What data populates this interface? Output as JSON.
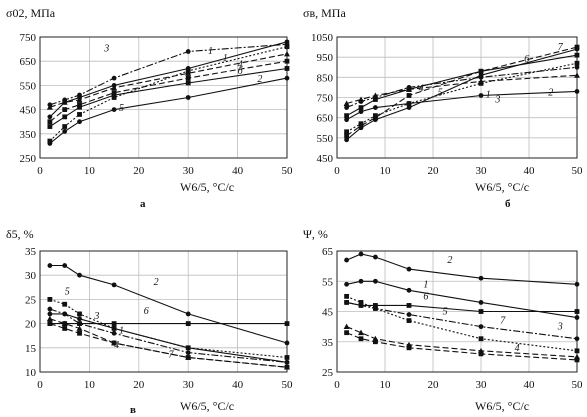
{
  "panels": [
    {
      "ylabel": "σ02, МПа",
      "xlabel": "W6/5, °C/c",
      "letter": "а",
      "xlim": [
        0,
        50
      ],
      "ylim": [
        250,
        750
      ],
      "xticks": [
        0,
        10,
        20,
        30,
        40,
        50
      ],
      "yticks": [
        250,
        350,
        450,
        550,
        650,
        750
      ],
      "tick_labels_x": [
        "0",
        "10",
        "20",
        "30",
        "40",
        "50"
      ],
      "tick_labels_y": [
        "250",
        "350",
        "450",
        "550",
        "650",
        "750"
      ],
      "curve_labels": [
        {
          "text": "1",
          "x": 37,
          "y": 650
        },
        {
          "text": "2",
          "x": 44,
          "y": 565
        },
        {
          "text": "3",
          "x": 13,
          "y": 690
        },
        {
          "text": "4",
          "x": 40,
          "y": 625
        },
        {
          "text": "5",
          "x": 16,
          "y": 445
        },
        {
          "text": "1",
          "x": 34,
          "y": 680
        },
        {
          "text": "б",
          "x": 40,
          "y": 598
        }
      ]
    },
    {
      "ylabel": "σв, МПа",
      "xlabel": "W6/5, °C/c",
      "letter": "б",
      "xlim": [
        0,
        50
      ],
      "ylim": [
        450,
        1050
      ],
      "xticks": [
        0,
        10,
        20,
        30,
        40,
        50
      ],
      "yticks": [
        450,
        550,
        650,
        750,
        850,
        950,
        1050
      ],
      "tick_labels_x": [
        "0",
        "10",
        "20",
        "30",
        "40",
        "50"
      ],
      "tick_labels_y": [
        "450",
        "550",
        "650",
        "750",
        "850",
        "950",
        "1050"
      ],
      "curve_labels": [
        {
          "text": "1",
          "x": 31,
          "y": 750
        },
        {
          "text": "2",
          "x": 44,
          "y": 760
        },
        {
          "text": "3",
          "x": 33,
          "y": 725
        },
        {
          "text": "4",
          "x": 17,
          "y": 780
        },
        {
          "text": "5",
          "x": 21,
          "y": 760
        },
        {
          "text": "7",
          "x": 46,
          "y": 985
        },
        {
          "text": "6",
          "x": 39,
          "y": 925
        }
      ]
    },
    {
      "ylabel": "δ5, %",
      "xlabel": "W6/5, °C/c",
      "letter": "в",
      "xlim": [
        0,
        50
      ],
      "ylim": [
        10,
        35
      ],
      "xticks": [
        0,
        10,
        20,
        30,
        40,
        50
      ],
      "yticks": [
        10,
        15,
        20,
        25,
        30,
        35
      ],
      "tick_labels_x": [
        "0",
        "10",
        "20",
        "30",
        "40",
        "50"
      ],
      "tick_labels_y": [
        "10",
        "15",
        "20",
        "25",
        "30",
        "35"
      ],
      "curve_labels": [
        {
          "text": "2",
          "x": 23,
          "y": 28
        },
        {
          "text": "6",
          "x": 21,
          "y": 22
        },
        {
          "text": "5",
          "x": 5,
          "y": 26
        },
        {
          "text": "3",
          "x": 11,
          "y": 21
        },
        {
          "text": "1",
          "x": 16,
          "y": 18
        },
        {
          "text": "4",
          "x": 15,
          "y": 15
        },
        {
          "text": "7",
          "x": 26,
          "y": 13
        }
      ]
    },
    {
      "ylabel": "Ψ, %",
      "xlabel": "W6/5, °C/c",
      "letter": "",
      "xlim": [
        0,
        50
      ],
      "ylim": [
        25,
        65
      ],
      "xticks": [
        0,
        10,
        20,
        30,
        40,
        50
      ],
      "yticks": [
        25,
        35,
        45,
        55,
        65
      ],
      "tick_labels_x": [
        "0",
        "10",
        "20",
        "30",
        "40",
        "50"
      ],
      "tick_labels_y": [
        "25",
        "35",
        "45",
        "55",
        "65"
      ],
      "curve_labels": [
        {
          "text": "2",
          "x": 23,
          "y": 61
        },
        {
          "text": "1",
          "x": 18,
          "y": 53
        },
        {
          "text": "6",
          "x": 18,
          "y": 49
        },
        {
          "text": "5",
          "x": 22,
          "y": 44
        },
        {
          "text": "7",
          "x": 34,
          "y": 41
        },
        {
          "text": "3",
          "x": 46,
          "y": 39
        },
        {
          "text": "4",
          "x": 37,
          "y": 32
        }
      ]
    }
  ],
  "chart_data": [
    {
      "type": "line",
      "xlabel": "W6/5, °C/c",
      "ylabel": "σ02, МПа",
      "xlim": [
        0,
        50
      ],
      "ylim": [
        250,
        750
      ],
      "grid": true,
      "series": [
        {
          "name": "1",
          "marker": "circle",
          "dash": "solid",
          "x": [
            2,
            5,
            8,
            15,
            30,
            50
          ],
          "y": [
            420,
            480,
            500,
            550,
            620,
            730
          ]
        },
        {
          "name": "2",
          "marker": "circle",
          "dash": "solid",
          "x": [
            2,
            5,
            8,
            15,
            30,
            50
          ],
          "y": [
            310,
            360,
            400,
            450,
            500,
            580
          ]
        },
        {
          "name": "3",
          "marker": "circle",
          "dash": "dashdot",
          "x": [
            2,
            5,
            8,
            15,
            30,
            50
          ],
          "y": [
            470,
            490,
            510,
            580,
            690,
            720
          ]
        },
        {
          "name": "4",
          "marker": "triangle",
          "dash": "dashed",
          "x": [
            2,
            5,
            8,
            15,
            30,
            50
          ],
          "y": [
            460,
            480,
            490,
            540,
            600,
            680
          ]
        },
        {
          "name": "5",
          "marker": "square",
          "dash": "dotted",
          "x": [
            2,
            5,
            8,
            15,
            30,
            50
          ],
          "y": [
            320,
            380,
            430,
            500,
            610,
            710
          ]
        },
        {
          "name": "6",
          "marker": "square",
          "dash": "solid",
          "x": [
            2,
            5,
            8,
            15,
            30,
            50
          ],
          "y": [
            380,
            420,
            460,
            510,
            560,
            620
          ]
        },
        {
          "name": "7",
          "marker": "square",
          "dash": "dashed",
          "x": [
            2,
            5,
            8,
            15,
            30,
            50
          ],
          "y": [
            400,
            450,
            470,
            520,
            580,
            650
          ]
        }
      ]
    },
    {
      "type": "line",
      "xlabel": "W6/5, °C/c",
      "ylabel": "σв, МПа",
      "xlim": [
        0,
        50
      ],
      "ylim": [
        450,
        1050
      ],
      "grid": true,
      "series": [
        {
          "name": "1",
          "marker": "circle",
          "dash": "solid",
          "x": [
            2,
            5,
            8,
            15,
            30,
            50
          ],
          "y": [
            540,
            600,
            640,
            700,
            860,
            990
          ]
        },
        {
          "name": "2",
          "marker": "circle",
          "dash": "solid",
          "x": [
            2,
            5,
            8,
            15,
            30,
            50
          ],
          "y": [
            640,
            680,
            700,
            720,
            760,
            780
          ]
        },
        {
          "name": "3",
          "marker": "circle",
          "dash": "dashdot",
          "x": [
            2,
            5,
            8,
            15,
            30,
            50
          ],
          "y": [
            700,
            730,
            750,
            800,
            850,
            900
          ]
        },
        {
          "name": "4",
          "marker": "triangle",
          "dash": "dashed",
          "x": [
            2,
            5,
            8,
            15,
            30,
            50
          ],
          "y": [
            720,
            740,
            760,
            790,
            830,
            860
          ]
        },
        {
          "name": "5",
          "marker": "square",
          "dash": "dotted",
          "x": [
            2,
            5,
            8,
            15,
            30,
            50
          ],
          "y": [
            580,
            620,
            660,
            720,
            820,
            920
          ]
        },
        {
          "name": "6",
          "marker": "square",
          "dash": "solid",
          "x": [
            2,
            5,
            8,
            15,
            30,
            50
          ],
          "y": [
            660,
            700,
            740,
            790,
            880,
            960
          ]
        },
        {
          "name": "7",
          "marker": "square",
          "dash": "dashed",
          "x": [
            2,
            5,
            8,
            15,
            30,
            50
          ],
          "y": [
            560,
            610,
            650,
            760,
            880,
            1000
          ]
        }
      ]
    },
    {
      "type": "line",
      "xlabel": "W6/5, °C/c",
      "ylabel": "δ5, %",
      "xlim": [
        0,
        50
      ],
      "ylim": [
        10,
        35
      ],
      "grid": true,
      "series": [
        {
          "name": "1",
          "marker": "circle",
          "dash": "solid",
          "x": [
            2,
            5,
            8,
            15,
            30,
            50
          ],
          "y": [
            22,
            22,
            21,
            19,
            15,
            12
          ]
        },
        {
          "name": "2",
          "marker": "circle",
          "dash": "solid",
          "x": [
            2,
            5,
            8,
            15,
            30,
            50
          ],
          "y": [
            32,
            32,
            30,
            28,
            22,
            16
          ]
        },
        {
          "name": "3",
          "marker": "circle",
          "dash": "dashdot",
          "x": [
            2,
            5,
            8,
            15,
            30,
            50
          ],
          "y": [
            23,
            22,
            20,
            18,
            14,
            12
          ]
        },
        {
          "name": "4",
          "marker": "triangle",
          "dash": "dashed",
          "x": [
            2,
            5,
            8,
            15,
            30,
            50
          ],
          "y": [
            21,
            20,
            19,
            16,
            13,
            11
          ]
        },
        {
          "name": "5",
          "marker": "square",
          "dash": "dotted",
          "x": [
            2,
            5,
            8,
            15,
            30,
            50
          ],
          "y": [
            25,
            24,
            22,
            19,
            15,
            13
          ]
        },
        {
          "name": "6",
          "marker": "square",
          "dash": "solid",
          "x": [
            2,
            5,
            8,
            15,
            30,
            50
          ],
          "y": [
            20,
            20,
            20,
            20,
            20,
            20
          ]
        },
        {
          "name": "7",
          "marker": "square",
          "dash": "dashed",
          "x": [
            2,
            5,
            8,
            15,
            30,
            50
          ],
          "y": [
            20,
            19,
            18,
            16,
            13,
            11
          ]
        }
      ]
    },
    {
      "type": "line",
      "xlabel": "W6/5, °C/c",
      "ylabel": "Ψ, %",
      "xlim": [
        0,
        50
      ],
      "ylim": [
        25,
        65
      ],
      "grid": true,
      "series": [
        {
          "name": "1",
          "marker": "circle",
          "dash": "solid",
          "x": [
            2,
            5,
            8,
            15,
            30,
            50
          ],
          "y": [
            54,
            55,
            55,
            52,
            48,
            43
          ]
        },
        {
          "name": "2",
          "marker": "circle",
          "dash": "solid",
          "x": [
            2,
            5,
            8,
            15,
            30,
            50
          ],
          "y": [
            62,
            64,
            63,
            59,
            56,
            54
          ]
        },
        {
          "name": "3",
          "marker": "circle",
          "dash": "dashdot",
          "x": [
            2,
            5,
            8,
            15,
            30,
            50
          ],
          "y": [
            48,
            47,
            46,
            44,
            40,
            36
          ]
        },
        {
          "name": "4",
          "marker": "triangle",
          "dash": "dashed",
          "x": [
            2,
            5,
            8,
            15,
            30,
            50
          ],
          "y": [
            40,
            38,
            36,
            34,
            32,
            30
          ]
        },
        {
          "name": "5",
          "marker": "square",
          "dash": "dotted",
          "x": [
            2,
            5,
            8,
            15,
            30,
            50
          ],
          "y": [
            50,
            48,
            46,
            42,
            36,
            32
          ]
        },
        {
          "name": "6",
          "marker": "square",
          "dash": "solid",
          "x": [
            2,
            5,
            8,
            15,
            30,
            50
          ],
          "y": [
            48,
            47,
            47,
            47,
            45,
            45
          ]
        },
        {
          "name": "7",
          "marker": "square",
          "dash": "dashed",
          "x": [
            2,
            5,
            8,
            15,
            30,
            50
          ],
          "y": [
            38,
            36,
            35,
            33,
            31,
            29
          ]
        }
      ]
    }
  ]
}
